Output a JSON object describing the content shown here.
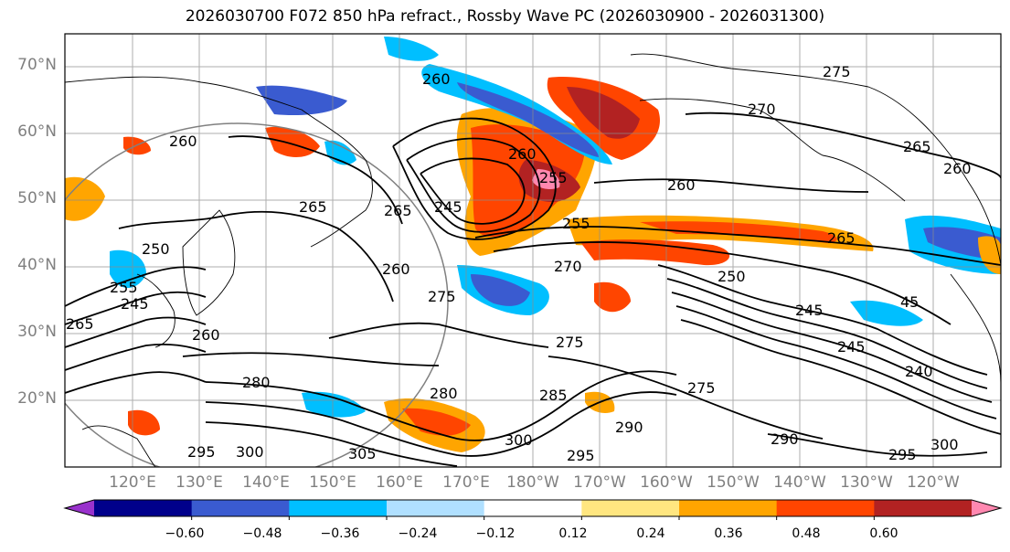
{
  "title": "2026030700 F072 850 hPa refract., Rossby Wave PC (2026030900 - 2026031300)",
  "lat_labels": [
    "70°N",
    "60°N",
    "50°N",
    "40°N",
    "30°N",
    "20°N"
  ],
  "lon_labels": [
    "120°E",
    "130°E",
    "140°E",
    "150°E",
    "160°E",
    "170°E",
    "180°W",
    "170°W",
    "160°W",
    "150°W",
    "140°W",
    "130°W",
    "120°W"
  ],
  "colorbar": {
    "ticks": [
      "−0.60",
      "−0.48",
      "−0.36",
      "−0.24",
      "−0.12",
      "0.12",
      "0.24",
      "0.36",
      "0.48",
      "0.60"
    ],
    "colors": [
      "#9932cc",
      "#00008b",
      "#3a5bd0",
      "#00bfff",
      "#b0e0ff",
      "#ffffff",
      "#ffe680",
      "#ffa500",
      "#ff4500",
      "#b22222",
      "#ff88b0"
    ]
  },
  "contour_labels": [
    {
      "id": "c1",
      "text": "260"
    },
    {
      "id": "c2",
      "text": "275"
    },
    {
      "id": "c3",
      "text": "270"
    },
    {
      "id": "c4",
      "text": "260"
    },
    {
      "id": "c5",
      "text": "265"
    },
    {
      "id": "c6",
      "text": "260"
    },
    {
      "id": "c7",
      "text": "260"
    },
    {
      "id": "c8",
      "text": "255"
    },
    {
      "id": "c9",
      "text": "260"
    },
    {
      "id": "c10",
      "text": "265"
    },
    {
      "id": "c11",
      "text": "265"
    },
    {
      "id": "c12",
      "text": "255"
    },
    {
      "id": "c13",
      "text": "245"
    },
    {
      "id": "c14",
      "text": "265"
    },
    {
      "id": "c15",
      "text": "260"
    },
    {
      "id": "c16",
      "text": "270"
    },
    {
      "id": "c17",
      "text": "250"
    },
    {
      "id": "c18",
      "text": "255"
    },
    {
      "id": "c19",
      "text": "245"
    },
    {
      "id": "c20",
      "text": "265"
    },
    {
      "id": "c21",
      "text": "260"
    },
    {
      "id": "c22",
      "text": "275"
    },
    {
      "id": "c23",
      "text": "250"
    },
    {
      "id": "c24",
      "text": "245"
    },
    {
      "id": "c25",
      "text": "245"
    },
    {
      "id": "c26",
      "text": "240"
    },
    {
      "id": "c27",
      "text": "280"
    },
    {
      "id": "c28",
      "text": "280"
    },
    {
      "id": "c29",
      "text": "285"
    },
    {
      "id": "c30",
      "text": "275"
    },
    {
      "id": "c31",
      "text": "290"
    },
    {
      "id": "c32",
      "text": "290"
    },
    {
      "id": "c33",
      "text": "295"
    },
    {
      "id": "c34",
      "text": "300"
    },
    {
      "id": "c35",
      "text": "305"
    },
    {
      "id": "c36",
      "text": "300"
    },
    {
      "id": "c37",
      "text": "295"
    },
    {
      "id": "c38",
      "text": "295"
    },
    {
      "id": "c39",
      "text": "300"
    },
    {
      "id": "c40",
      "text": "275"
    },
    {
      "id": "c41",
      "text": "45"
    }
  ]
}
